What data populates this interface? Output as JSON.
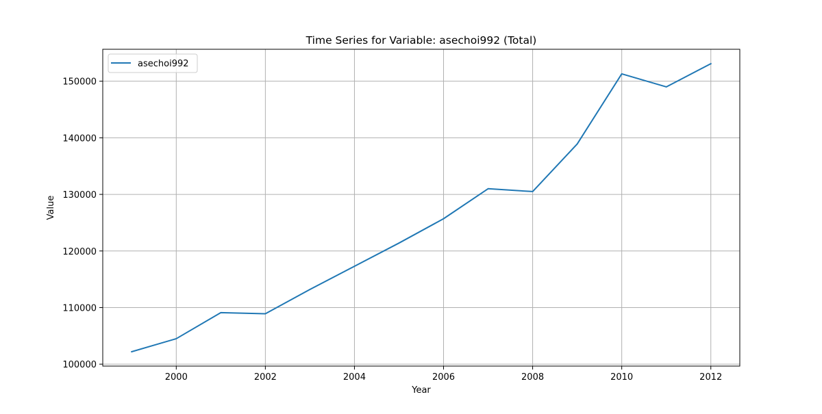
{
  "chart_data": {
    "type": "line",
    "title": "Time Series for Variable: asechoi992 (Total)",
    "xlabel": "Year",
    "ylabel": "Value",
    "x": [
      1999,
      2000,
      2001,
      2002,
      2003,
      2004,
      2005,
      2006,
      2007,
      2008,
      2009,
      2010,
      2011,
      2012
    ],
    "series": [
      {
        "name": "asechoi992",
        "color": "#1f77b4",
        "values": [
          102200,
          104500,
          109100,
          108900,
          113200,
          117300,
          121400,
          125700,
          131000,
          130500,
          138900,
          151300,
          149000,
          153100
        ]
      }
    ],
    "xlim": [
      1998.35,
      2012.65
    ],
    "ylim": [
      99655,
      155645
    ],
    "x_ticks": [
      2000,
      2002,
      2004,
      2006,
      2008,
      2010,
      2012
    ],
    "y_ticks": [
      100000,
      110000,
      120000,
      130000,
      140000,
      150000
    ],
    "x_tick_labels": [
      "2000",
      "2002",
      "2004",
      "2006",
      "2008",
      "2010",
      "2012"
    ],
    "y_tick_labels": [
      "100000",
      "110000",
      "120000",
      "130000",
      "140000",
      "150000"
    ],
    "grid": true,
    "legend": "upper-left"
  }
}
